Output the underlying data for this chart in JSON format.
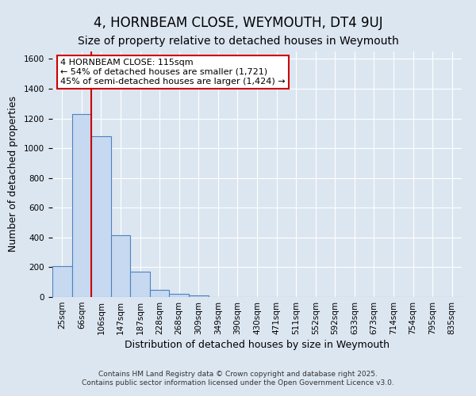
{
  "title": "4, HORNBEAM CLOSE, WEYMOUTH, DT4 9UJ",
  "subtitle": "Size of property relative to detached houses in Weymouth",
  "xlabel": "Distribution of detached houses by size in Weymouth",
  "ylabel": "Number of detached properties",
  "bar_labels": [
    "25sqm",
    "66sqm",
    "106sqm",
    "147sqm",
    "187sqm",
    "228sqm",
    "268sqm",
    "309sqm",
    "349sqm",
    "390sqm",
    "430sqm",
    "471sqm",
    "511sqm",
    "552sqm",
    "592sqm",
    "633sqm",
    "673sqm",
    "714sqm",
    "754sqm",
    "795sqm",
    "835sqm"
  ],
  "bar_values": [
    205,
    1230,
    1080,
    415,
    170,
    50,
    22,
    10,
    0,
    0,
    0,
    0,
    0,
    0,
    0,
    0,
    0,
    0,
    0,
    0,
    0
  ],
  "bar_color": "#c6d9f0",
  "bar_edge_color": "#4f81bd",
  "background_color": "#dce6f1",
  "ylim": [
    0,
    1650
  ],
  "yticks": [
    0,
    200,
    400,
    600,
    800,
    1000,
    1200,
    1400,
    1600
  ],
  "vline_x": 1.5,
  "vline_color": "#cc0000",
  "annotation_title": "4 HORNBEAM CLOSE: 115sqm",
  "annotation_line1": "← 54% of detached houses are smaller (1,721)",
  "annotation_line2": "45% of semi-detached houses are larger (1,424) →",
  "footer1": "Contains HM Land Registry data © Crown copyright and database right 2025.",
  "footer2": "Contains public sector information licensed under the Open Government Licence v3.0.",
  "title_fontsize": 12,
  "subtitle_fontsize": 10,
  "axis_label_fontsize": 9,
  "tick_fontsize": 7.5,
  "annotation_fontsize": 8
}
